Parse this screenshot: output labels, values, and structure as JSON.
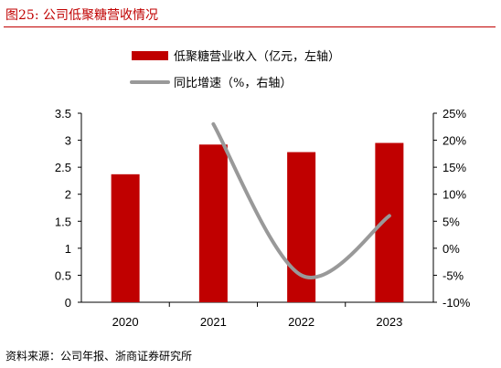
{
  "figure": {
    "title": "图25:   公司低聚糖营收情况",
    "source": "资料来源：公司年报、浙商证券研究所"
  },
  "chart_data": {
    "type": "bar",
    "categories": [
      "2020",
      "2021",
      "2022",
      "2023"
    ],
    "series": [
      {
        "name": "低聚糖营业收入（亿元，左轴）",
        "type": "bar",
        "axis": "left",
        "color": "#c00000",
        "values": [
          2.37,
          2.92,
          2.78,
          2.95
        ]
      },
      {
        "name": "同比增速（%，右轴）",
        "type": "line",
        "axis": "right",
        "color": "#999999",
        "values": [
          null,
          23.0,
          -5.0,
          6.0
        ]
      }
    ],
    "y_left": {
      "min": 0,
      "max": 3.5,
      "ticks": [
        "0",
        "0.5",
        "1",
        "1.5",
        "2",
        "2.5",
        "3",
        "3.5"
      ]
    },
    "y_right": {
      "min": -10,
      "max": 25,
      "ticks": [
        "-10%",
        "-5%",
        "0%",
        "5%",
        "10%",
        "15%",
        "20%",
        "25%"
      ]
    },
    "legend_position": "top-left",
    "grid": false
  }
}
